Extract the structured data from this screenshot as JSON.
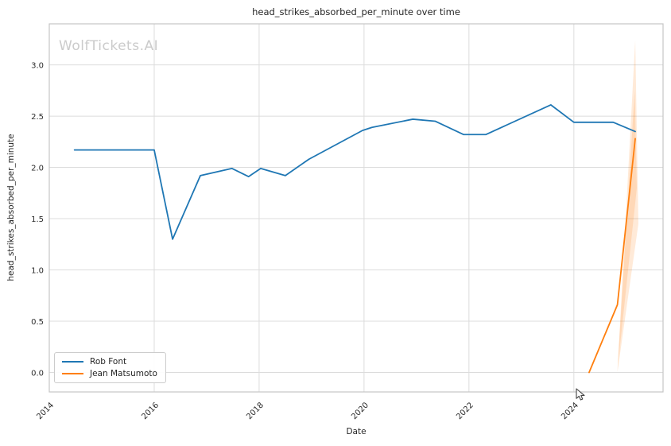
{
  "watermark": "WolfTickets.AI",
  "chart_data": {
    "type": "line",
    "title": "head_strikes_absorbed_per_minute over time",
    "xlabel": "Date",
    "ylabel": "head_strikes_absorbed_per_minute",
    "xlim": [
      2014.0,
      2025.7
    ],
    "ylim": [
      -0.19,
      3.4
    ],
    "x_ticks": [
      2014,
      2016,
      2018,
      2020,
      2022,
      2024
    ],
    "x_tick_labels": [
      "2014",
      "2016",
      "2018",
      "2020",
      "2022",
      "2024"
    ],
    "y_ticks": [
      0.0,
      0.5,
      1.0,
      1.5,
      2.0,
      2.5,
      3.0
    ],
    "y_tick_labels": [
      "0.0",
      "0.5",
      "1.0",
      "1.5",
      "2.0",
      "2.5",
      "3.0"
    ],
    "grid": true,
    "legend_position": "lower left",
    "series": [
      {
        "name": "Rob Font",
        "color": "#1f77b4",
        "x": [
          2014.48,
          2016.0,
          2016.35,
          2016.88,
          2017.48,
          2017.8,
          2018.03,
          2018.5,
          2018.95,
          2019.97,
          2020.15,
          2020.93,
          2021.36,
          2021.9,
          2022.32,
          2023.56,
          2024.0,
          2024.75,
          2025.17
        ],
        "y": [
          2.17,
          2.17,
          1.3,
          1.92,
          1.99,
          1.91,
          1.99,
          1.92,
          2.08,
          2.36,
          2.39,
          2.47,
          2.45,
          2.32,
          2.32,
          2.61,
          2.44,
          2.44,
          2.35
        ]
      },
      {
        "name": "Jean Matsumoto",
        "color": "#ff7f0e",
        "x": [
          2024.29,
          2024.83,
          2025.17
        ],
        "y": [
          0.0,
          0.66,
          2.28
        ]
      }
    ],
    "bands": [
      {
        "series": "Jean Matsumoto",
        "color": "rgba(255,127,14,0.16)",
        "x": [
          2024.83,
          2025.17,
          2025.23
        ],
        "y": [
          0.0,
          3.24,
          1.45
        ]
      },
      {
        "series": "Jean Matsumoto",
        "color": "rgba(255,127,14,0.16)",
        "x": [
          2024.83,
          2025.16,
          2025.2
        ],
        "y": [
          0.02,
          2.75,
          1.8
        ]
      }
    ],
    "colors": {
      "grid": "#dcdcdc",
      "spine": "#c6c6c6",
      "text": "#262626",
      "watermark": "#cbcbcb"
    }
  }
}
